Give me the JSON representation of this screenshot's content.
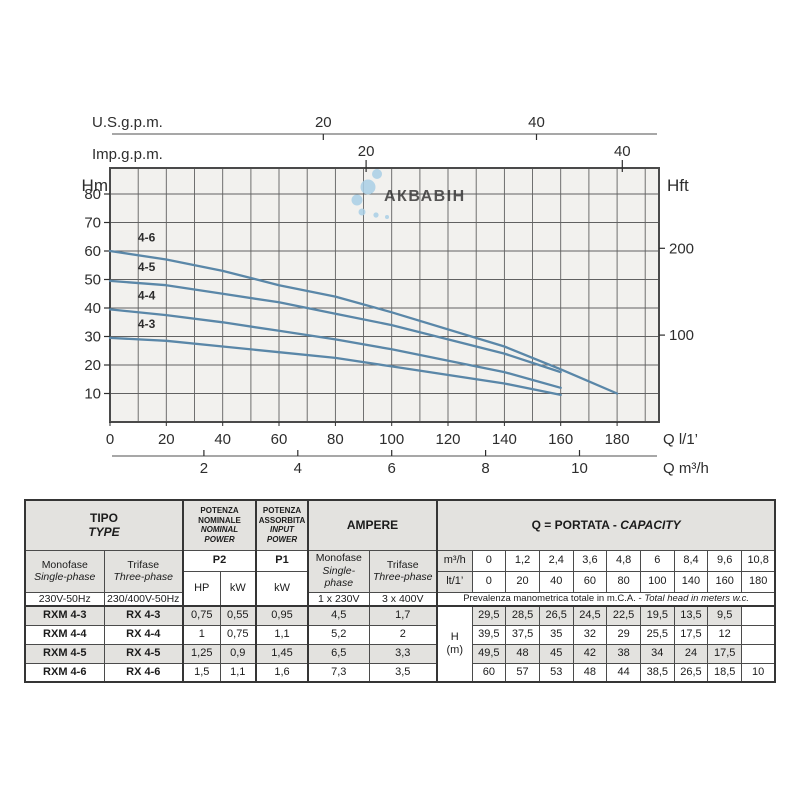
{
  "watermark": {
    "text": "АКВАВІН"
  },
  "chart_data": {
    "type": "line",
    "title": "",
    "left_axis": {
      "label": "Hm",
      "ticks": [
        80,
        70,
        60,
        50,
        40,
        30,
        20,
        10
      ],
      "range": [
        0,
        89
      ]
    },
    "right_axis": {
      "label": "Hft",
      "ticks": [
        200,
        100
      ]
    },
    "top_axes": [
      {
        "label": "U.S.g.p.m.",
        "ticks": [
          20,
          40
        ]
      },
      {
        "label": "Imp.g.p.m.",
        "ticks": [
          20,
          40
        ]
      }
    ],
    "bottom_axes": [
      {
        "label": "Q l/1’",
        "ticks": [
          0,
          20,
          40,
          60,
          80,
          100,
          120,
          140,
          160,
          180
        ]
      },
      {
        "label": "Q m³/h",
        "ticks": [
          2,
          4,
          6,
          8,
          10
        ]
      }
    ],
    "x_range_lmin": [
      0,
      195
    ],
    "grid": true,
    "series_color": "#5a87a8",
    "series": [
      {
        "name": "4-6",
        "x": [
          0,
          20,
          40,
          60,
          80,
          100,
          140,
          160,
          180
        ],
        "y": [
          60,
          57,
          53,
          48,
          44,
          38.5,
          26.5,
          18.5,
          10
        ]
      },
      {
        "name": "4-5",
        "x": [
          0,
          20,
          40,
          60,
          80,
          100,
          140,
          160
        ],
        "y": [
          49.5,
          48,
          45,
          42,
          38,
          34,
          24,
          17.5
        ]
      },
      {
        "name": "4-4",
        "x": [
          0,
          20,
          40,
          60,
          80,
          100,
          140,
          160
        ],
        "y": [
          39.5,
          37.5,
          35,
          32,
          29,
          25.5,
          17.5,
          12
        ]
      },
      {
        "name": "4-3",
        "x": [
          0,
          20,
          40,
          60,
          80,
          100,
          140,
          160
        ],
        "y": [
          29.5,
          28.5,
          26.5,
          24.5,
          22.5,
          19.5,
          13.5,
          9.5
        ]
      }
    ]
  },
  "table": {
    "header": {
      "tipo_it": "TIPO",
      "tipo_en": "TYPE",
      "potenza_nominale": {
        "l1": "POTENZA",
        "l2": "NOMINALE",
        "l3": "NOMINAL",
        "l4": "POWER"
      },
      "potenza_assorbita": {
        "l1": "POTENZA",
        "l2": "ASSORBITA",
        "l3": "INPUT",
        "l4": "POWER"
      },
      "ampere": "AMPERE",
      "portata_it": "Q = PORTATA - ",
      "portata_en": "CAPACITY",
      "monofase": {
        "l1": "Monofase",
        "l2": "Single-phase"
      },
      "trifase": {
        "l1": "Trifase",
        "l2": "Three-phase"
      },
      "p2": "P2",
      "p1": "P1",
      "hp": "HP",
      "kw": "kW",
      "kw2": "kW",
      "mono_volt": "230V-50Hz",
      "tri_volt": "230/400V-50Hz",
      "amp_mono_volt": "1 x 230V",
      "amp_tri_volt": "3 x 400V",
      "m3h_label": "m³/h",
      "lt_label": "lt/1’",
      "m3h_values": [
        "0",
        "1,2",
        "2,4",
        "3,6",
        "4,8",
        "6",
        "8,4",
        "9,6",
        "10,8"
      ],
      "lt_values": [
        "0",
        "20",
        "40",
        "60",
        "80",
        "100",
        "140",
        "160",
        "180"
      ],
      "prevalenza_it": "Prevalenza manometrica totale in m.C.A. - ",
      "prevalenza_en": "Total head in meters w.c.",
      "h_label": "H",
      "h_unit": "(m)"
    },
    "rows": [
      {
        "mono": "RXM 4-3",
        "tri": "RX 4-3",
        "hp": "0,75",
        "kw": "0,55",
        "p1": "0,95",
        "amp1": "4,5",
        "amp3": "1,7",
        "h": [
          "29,5",
          "28,5",
          "26,5",
          "24,5",
          "22,5",
          "19,5",
          "13,5",
          "9,5",
          ""
        ]
      },
      {
        "mono": "RXM 4-4",
        "tri": "RX 4-4",
        "hp": "1",
        "kw": "0,75",
        "p1": "1,1",
        "amp1": "5,2",
        "amp3": "2",
        "h": [
          "39,5",
          "37,5",
          "35",
          "32",
          "29",
          "25,5",
          "17,5",
          "12",
          ""
        ]
      },
      {
        "mono": "RXM 4-5",
        "tri": "RX 4-5",
        "hp": "1,25",
        "kw": "0,9",
        "p1": "1,45",
        "amp1": "6,5",
        "amp3": "3,3",
        "h": [
          "49,5",
          "48",
          "45",
          "42",
          "38",
          "34",
          "24",
          "17,5",
          ""
        ]
      },
      {
        "mono": "RXM 4-6",
        "tri": "RX 4-6",
        "hp": "1,5",
        "kw": "1,1",
        "p1": "1,6",
        "amp1": "7,3",
        "amp3": "3,5",
        "h": [
          "60",
          "57",
          "53",
          "48",
          "44",
          "38,5",
          "26,5",
          "18,5",
          "10"
        ]
      }
    ]
  }
}
